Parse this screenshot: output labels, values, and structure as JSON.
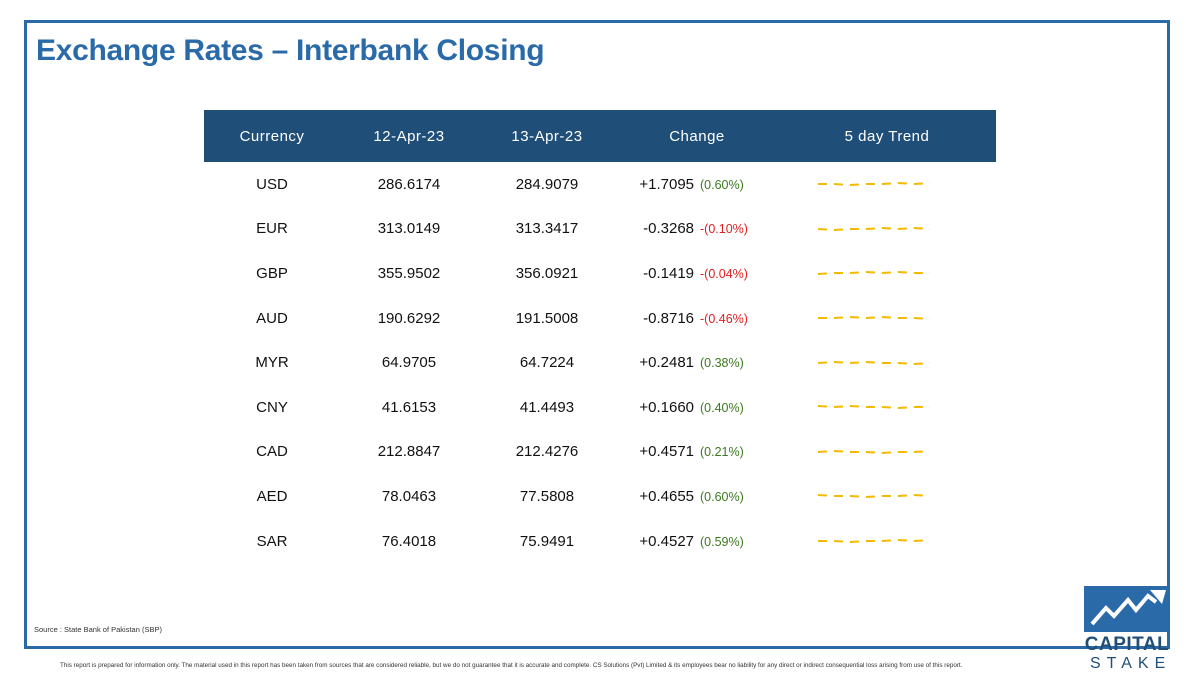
{
  "title": "Exchange Rates – Interbank Closing",
  "table": {
    "headers": {
      "currency": "Currency",
      "date1": "12-Apr-23",
      "date2": "13-Apr-23",
      "change": "Change",
      "trend": "5 day Trend"
    },
    "rows": [
      {
        "currency": "USD",
        "date1": "286.6174",
        "date2": "284.9079",
        "change": "+1.7095",
        "pct": "(0.60%)",
        "positive": true
      },
      {
        "currency": "EUR",
        "date1": "313.0149",
        "date2": "313.3417",
        "change": "-0.3268",
        "pct": "-(0.10%)",
        "positive": false
      },
      {
        "currency": "GBP",
        "date1": "355.9502",
        "date2": "356.0921",
        "change": "-0.1419",
        "pct": "-(0.04%)",
        "positive": false
      },
      {
        "currency": "AUD",
        "date1": "190.6292",
        "date2": "191.5008",
        "change": "-0.8716",
        "pct": "-(0.46%)",
        "positive": false
      },
      {
        "currency": "MYR",
        "date1": "64.9705",
        "date2": "64.7224",
        "change": "+0.2481",
        "pct": "(0.38%)",
        "positive": true
      },
      {
        "currency": "CNY",
        "date1": "41.6153",
        "date2": "41.4493",
        "change": "+0.1660",
        "pct": "(0.40%)",
        "positive": true
      },
      {
        "currency": "CAD",
        "date1": "212.8847",
        "date2": "212.4276",
        "change": "+0.4571",
        "pct": "(0.21%)",
        "positive": true
      },
      {
        "currency": "AED",
        "date1": "78.0463",
        "date2": "77.5808",
        "change": "+0.4655",
        "pct": "(0.60%)",
        "positive": true
      },
      {
        "currency": "SAR",
        "date1": "76.4018",
        "date2": "75.9491",
        "change": "+0.4527",
        "pct": "(0.59%)",
        "positive": true
      }
    ]
  },
  "source": "Source : State Bank of Pakistan (SBP)",
  "disclaimer": "This report is prepared for information only. The material used in this report has been taken from sources that are considered reliable, but we do not guarantee that it is accurate and complete. CS Solutions (Pvt) Limited & its employees bear no liability for any direct or indirect consequential loss arising from use of this report.",
  "logo": {
    "line1": "CAPITAL",
    "line2": "STAKE"
  },
  "colors": {
    "title": "#2a6aa8",
    "header_bg": "#1f4e79",
    "positive": "#3a7a1e",
    "negative": "#e02020",
    "trend": "#f5b800"
  },
  "icons": {
    "logo": "rising-chart-arrow-icon"
  }
}
